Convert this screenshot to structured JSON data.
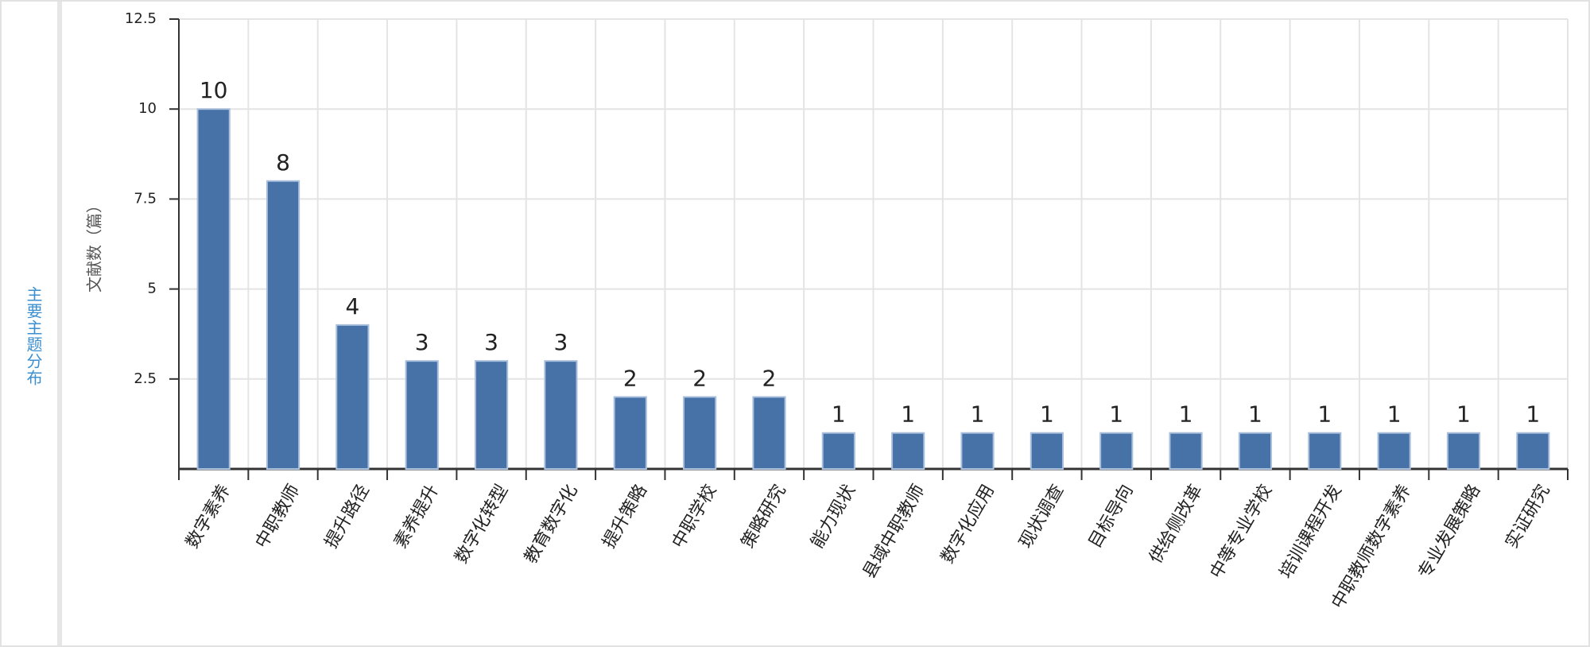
{
  "chart_data": {
    "type": "bar",
    "title": "主要主题分布",
    "y_label": "文献数（篇）",
    "categories": [
      "数字素养",
      "中职教师",
      "提升路径",
      "素养提升",
      "数字化转型",
      "教育数字化",
      "提升策略",
      "中职学校",
      "策略研究",
      "能力现状",
      "县域中职教师",
      "数字化应用",
      "现状调查",
      "目标导向",
      "供给侧改革",
      "中等专业学校",
      "培训课程开发",
      "中职教师数字素养",
      "专业发展策略",
      "实证研究"
    ],
    "values": [
      10,
      8,
      4,
      3,
      3,
      3,
      2,
      2,
      2,
      1,
      1,
      1,
      1,
      1,
      1,
      1,
      1,
      1,
      1,
      1
    ],
    "color": "#4672a8",
    "ylim": [
      0,
      12.5
    ],
    "yticks": [
      2.5,
      5,
      7.5,
      10,
      12.5
    ],
    "grid": true
  }
}
